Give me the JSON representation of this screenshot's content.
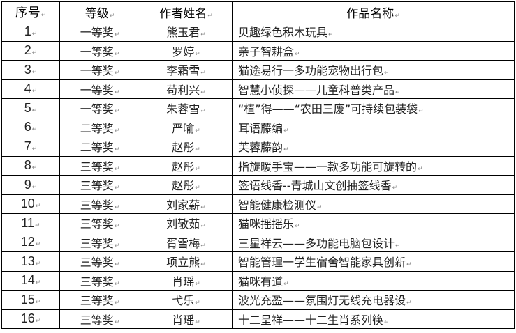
{
  "table": {
    "headers": [
      "序号",
      "等级",
      "作者姓名",
      "作品名称"
    ],
    "rows": [
      [
        "1",
        "一等奖",
        "熊玉君",
        "贝趣绿色积木玩具"
      ],
      [
        "2",
        "一等奖",
        "罗婷",
        "亲子智耕盒"
      ],
      [
        "3",
        "一等奖",
        "李霜雪",
        "猫途易行一多功能宠物出行包"
      ],
      [
        "4",
        "一等奖",
        "苟利兴",
        "智慧小侦探——儿童科普类产品"
      ],
      [
        "5",
        "一等奖",
        "朱蓉雪",
        "“植”得——“农田三废”可持续包装袋"
      ],
      [
        "6",
        "二等奖",
        "严喻",
        "耳语藤编"
      ],
      [
        "7",
        "二等奖",
        "赵彤",
        "芙蓉藤韵"
      ],
      [
        "8",
        "三等奖",
        "赵彤",
        "指旋暖手宝——一款多功能可旋转的"
      ],
      [
        "9",
        "三等奖",
        "赵彤",
        "签语线香--青城山文创抽签线香"
      ],
      [
        "10",
        "三等奖",
        "刘家薪",
        "智能健康检测仪"
      ],
      [
        "11",
        "三等奖",
        "刘敬茹",
        "猫咪摇摇乐"
      ],
      [
        "12",
        "三等奖",
        "胥雪梅",
        "三星祥云——多功能电脑包设计"
      ],
      [
        "13",
        "三等奖",
        "项立熊",
        "智能管理一学生宿舍智能家具创新"
      ],
      [
        "14",
        "三等奖",
        "肖瑶",
        "猫咪有道"
      ],
      [
        "15",
        "三等奖",
        "弋乐",
        "波光充盈——氛围灯无线充电器设"
      ],
      [
        "16",
        "三等奖",
        "肖瑶",
        "十二呈祥——十二生肖系列筷"
      ]
    ]
  }
}
